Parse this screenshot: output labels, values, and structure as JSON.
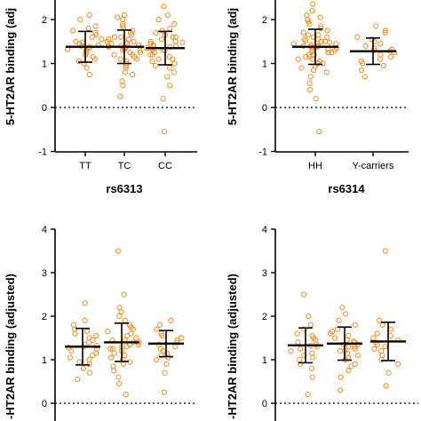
{
  "colors": {
    "point": "#F0922B",
    "axis": "#000000"
  },
  "chart_data": [
    {
      "type": "scatter",
      "panel": "top-left",
      "ylabel": "5-HT2AR binding (adj",
      "xlabel": "rs6313",
      "ylim": [
        -1,
        3
      ],
      "yticks": [
        "-1",
        "0",
        "1",
        "2"
      ],
      "reference_line": 0,
      "groups": [
        {
          "label": "TT",
          "mean": 1.38,
          "sd": 0.35,
          "values": [
            0.75,
            0.9,
            1.0,
            1.05,
            1.1,
            1.15,
            1.2,
            1.25,
            1.3,
            1.32,
            1.35,
            1.38,
            1.4,
            1.42,
            1.45,
            1.48,
            1.5,
            1.55,
            1.6,
            1.65,
            1.7,
            1.75,
            1.8,
            1.85,
            2.0,
            2.1
          ]
        },
        {
          "label": "TC",
          "mean": 1.38,
          "sd": 0.38,
          "values": [
            0.25,
            0.5,
            0.6,
            0.75,
            0.8,
            0.9,
            0.95,
            1.0,
            1.05,
            1.1,
            1.1,
            1.15,
            1.2,
            1.2,
            1.25,
            1.25,
            1.3,
            1.3,
            1.32,
            1.35,
            1.35,
            1.38,
            1.4,
            1.4,
            1.42,
            1.45,
            1.45,
            1.48,
            1.5,
            1.5,
            1.55,
            1.55,
            1.6,
            1.6,
            1.65,
            1.7,
            1.75,
            1.8,
            1.85,
            1.9,
            2.0,
            2.05,
            2.1
          ]
        },
        {
          "label": "CC",
          "mean": 1.35,
          "sd": 0.38,
          "values": [
            -0.55,
            0.2,
            0.5,
            0.7,
            0.8,
            0.9,
            0.95,
            1.0,
            1.05,
            1.1,
            1.1,
            1.15,
            1.2,
            1.2,
            1.25,
            1.3,
            1.3,
            1.32,
            1.35,
            1.35,
            1.38,
            1.4,
            1.4,
            1.42,
            1.45,
            1.48,
            1.5,
            1.5,
            1.55,
            1.6,
            1.6,
            1.65,
            1.7,
            1.75,
            1.8,
            1.9,
            2.0,
            2.1,
            2.3,
            2.6
          ]
        }
      ]
    },
    {
      "type": "scatter",
      "panel": "top-right",
      "ylabel": "5-HT2AR binding (adj",
      "xlabel": "rs6314",
      "ylim": [
        -1,
        3
      ],
      "yticks": [
        "-1",
        "0",
        "1",
        "2"
      ],
      "reference_line": 0,
      "groups": [
        {
          "label": "HH",
          "mean": 1.38,
          "sd": 0.4,
          "values": [
            -0.55,
            0.2,
            0.4,
            0.55,
            0.7,
            0.8,
            0.85,
            0.9,
            0.95,
            1.0,
            1.0,
            1.05,
            1.1,
            1.1,
            1.15,
            1.15,
            1.2,
            1.2,
            1.25,
            1.25,
            1.28,
            1.3,
            1.3,
            1.32,
            1.35,
            1.35,
            1.38,
            1.38,
            1.4,
            1.4,
            1.42,
            1.45,
            1.45,
            1.48,
            1.5,
            1.5,
            1.52,
            1.55,
            1.55,
            1.6,
            1.6,
            1.65,
            1.65,
            1.7,
            1.75,
            1.8,
            1.85,
            1.9,
            1.95,
            2.0,
            2.05,
            2.1,
            2.2,
            2.35,
            2.5
          ]
        },
        {
          "label": "Y-carriers",
          "mean": 1.28,
          "sd": 0.3,
          "values": [
            0.7,
            0.85,
            0.95,
            1.0,
            1.05,
            1.1,
            1.15,
            1.2,
            1.25,
            1.28,
            1.3,
            1.32,
            1.35,
            1.4,
            1.45,
            1.5,
            1.55,
            1.6,
            1.7,
            1.75,
            1.85
          ]
        }
      ]
    },
    {
      "type": "scatter",
      "panel": "bottom-left",
      "ylabel": "-HT2AR binding (adjusted)",
      "xlabel": "",
      "ylim": [
        0,
        4
      ],
      "yticks": [
        "0",
        "1",
        "2",
        "3",
        "4"
      ],
      "reference_line": 0,
      "groups": [
        {
          "label": "",
          "mean": 1.3,
          "sd": 0.42,
          "values": [
            0.55,
            0.7,
            0.8,
            0.9,
            0.95,
            1.0,
            1.05,
            1.1,
            1.15,
            1.2,
            1.25,
            1.28,
            1.3,
            1.32,
            1.35,
            1.4,
            1.45,
            1.5,
            1.55,
            1.6,
            1.65,
            1.7,
            1.8,
            1.9,
            2.3
          ]
        },
        {
          "label": "",
          "mean": 1.4,
          "sd": 0.44,
          "values": [
            0.2,
            0.45,
            0.6,
            0.75,
            0.85,
            0.9,
            0.95,
            1.0,
            1.05,
            1.1,
            1.15,
            1.2,
            1.25,
            1.25,
            1.3,
            1.3,
            1.35,
            1.35,
            1.4,
            1.4,
            1.45,
            1.45,
            1.5,
            1.55,
            1.6,
            1.65,
            1.7,
            1.75,
            1.8,
            1.9,
            2.0,
            2.1,
            2.2,
            2.5,
            3.5
          ]
        },
        {
          "label": "",
          "mean": 1.37,
          "sd": 0.3,
          "values": [
            0.25,
            0.7,
            0.9,
            1.0,
            1.05,
            1.1,
            1.15,
            1.2,
            1.25,
            1.3,
            1.35,
            1.4,
            1.45,
            1.5,
            1.55,
            1.6,
            1.7,
            1.8,
            1.9
          ]
        }
      ]
    },
    {
      "type": "scatter",
      "panel": "bottom-right",
      "ylabel": "-HT2AR binding (adjusted)",
      "xlabel": "",
      "ylim": [
        0,
        4
      ],
      "yticks": [
        "0",
        "1",
        "2",
        "3",
        "4"
      ],
      "reference_line": 0,
      "groups": [
        {
          "label": "",
          "mean": 1.33,
          "sd": 0.4,
          "values": [
            0.2,
            0.6,
            0.8,
            0.9,
            1.0,
            1.05,
            1.1,
            1.15,
            1.2,
            1.25,
            1.3,
            1.32,
            1.35,
            1.4,
            1.45,
            1.5,
            1.55,
            1.6,
            1.7,
            1.8,
            2.0,
            2.5
          ]
        },
        {
          "label": "",
          "mean": 1.37,
          "sd": 0.38,
          "values": [
            0.3,
            0.6,
            0.75,
            0.85,
            0.9,
            1.0,
            1.05,
            1.1,
            1.15,
            1.2,
            1.2,
            1.25,
            1.3,
            1.3,
            1.35,
            1.35,
            1.4,
            1.42,
            1.45,
            1.5,
            1.55,
            1.6,
            1.65,
            1.7,
            1.8,
            1.9,
            2.05,
            2.2
          ]
        },
        {
          "label": "",
          "mean": 1.42,
          "sd": 0.44,
          "values": [
            0.4,
            0.7,
            0.9,
            1.0,
            1.1,
            1.2,
            1.25,
            1.3,
            1.35,
            1.4,
            1.45,
            1.5,
            1.55,
            1.6,
            1.7,
            1.8,
            1.9,
            3.5
          ]
        }
      ]
    }
  ]
}
